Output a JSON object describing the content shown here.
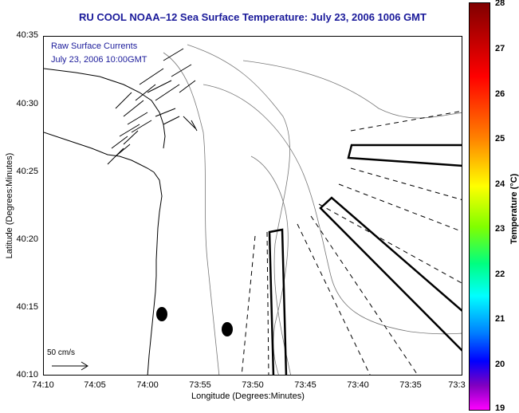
{
  "title": "RU COOL  NOAA–12  Sea Surface Temperature:  July 23, 2006 1006 GMT",
  "overlay_line1": "Raw Surface Currents",
  "overlay_line2": "July 23, 2006 10:00GMT",
  "x_axis_label": "Longitude (Degrees:Minutes)",
  "y_axis_label": "Latitude (Degrees:Minutes)",
  "x_ticks": [
    "74:10",
    "74:05",
    "74:00",
    "73:55",
    "73:50",
    "73:45",
    "73:40",
    "73:35",
    "73:3"
  ],
  "y_ticks": [
    "40:35",
    "40:30",
    "40:25",
    "40:20",
    "40:15",
    "40:10"
  ],
  "scale_label": "50 cm/s",
  "colorbar": {
    "label": "Temperature (°C)",
    "ticks": [
      "28",
      "27",
      "26",
      "25",
      "24",
      "23",
      "22",
      "21",
      "20",
      "19"
    ],
    "colors": [
      "#800000",
      "#ff0000",
      "#ff8000",
      "#ffff00",
      "#00ff80",
      "#00ffff",
      "#0000ff",
      "#ff00ff"
    ]
  }
}
